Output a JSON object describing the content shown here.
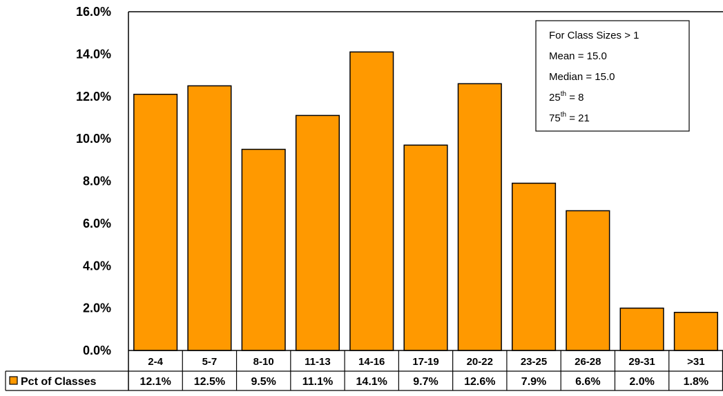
{
  "chart_data": {
    "type": "bar",
    "categories": [
      "2-4",
      "5-7",
      "8-10",
      "11-13",
      "14-16",
      "17-19",
      "20-22",
      "23-25",
      "26-28",
      "29-31",
      ">31"
    ],
    "series": [
      {
        "name": "Pct of Classes",
        "values": [
          12.1,
          12.5,
          9.5,
          11.1,
          14.1,
          9.7,
          12.6,
          7.9,
          6.6,
          2.0,
          1.8
        ],
        "labels": [
          "12.1%",
          "12.5%",
          "9.5%",
          "11.1%",
          "14.1%",
          "9.7%",
          "12.6%",
          "7.9%",
          "6.6%",
          "2.0%",
          "1.8%"
        ],
        "color": "#FF9900"
      }
    ],
    "ylim": [
      0,
      16
    ],
    "yticks": [
      "0.0%",
      "2.0%",
      "4.0%",
      "6.0%",
      "8.0%",
      "10.0%",
      "12.0%",
      "14.0%",
      "16.0%"
    ],
    "data_table": true,
    "grid": false,
    "annotation": {
      "line1": "For Class Sizes > 1",
      "line2": "Mean = 15.0",
      "line3": "Median = 15.0",
      "line4_base": "25",
      "line4_sup": "th",
      "line4_rest": " = 8",
      "line5_base": "75",
      "line5_sup": "th",
      "line5_rest": " = 21"
    },
    "annotation_placement": "top-right"
  }
}
